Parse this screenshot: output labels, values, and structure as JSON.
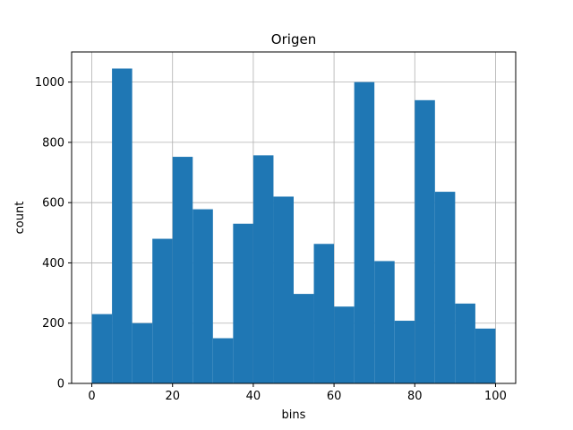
{
  "chart_data": {
    "type": "bar",
    "title": "Origen",
    "xlabel": "bins",
    "ylabel": "count",
    "xlim": [
      -5,
      105
    ],
    "ylim": [
      0,
      1100
    ],
    "grid": true,
    "bar_color": "#1f77b4",
    "bin_edges": [
      0,
      5,
      10,
      15,
      20,
      25,
      30,
      35,
      40,
      45,
      50,
      55,
      60,
      65,
      70,
      75,
      80,
      85,
      90,
      95,
      100
    ],
    "values": [
      230,
      1045,
      200,
      480,
      752,
      578,
      150,
      530,
      757,
      620,
      297,
      463,
      255,
      1000,
      406,
      208,
      940,
      636,
      265,
      182
    ],
    "xticks": [
      0,
      20,
      40,
      60,
      80,
      100
    ],
    "xtick_labels": [
      "0",
      "20",
      "40",
      "60",
      "80",
      "100"
    ],
    "yticks": [
      0,
      200,
      400,
      600,
      800,
      1000
    ],
    "ytick_labels": [
      "0",
      "200",
      "400",
      "600",
      "800",
      "1000"
    ]
  }
}
